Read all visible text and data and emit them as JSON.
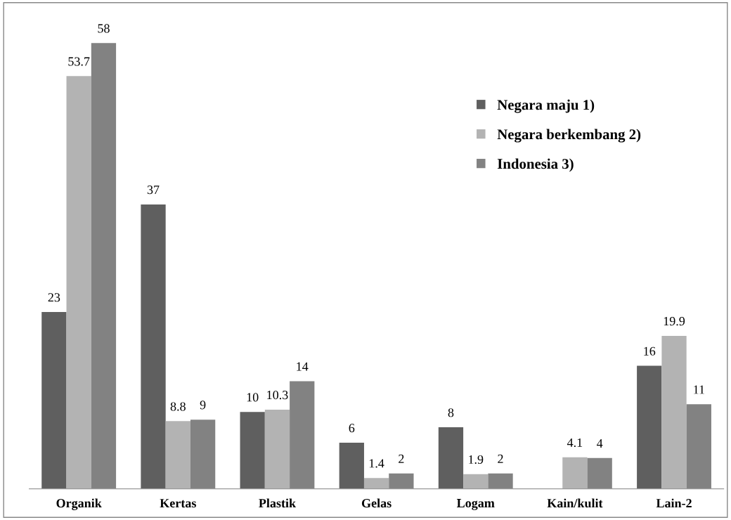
{
  "chart_data": {
    "type": "bar",
    "categories": [
      "Organik",
      "Kertas",
      "Plastik",
      "Gelas",
      "Logam",
      "Kain/kulit",
      "Lain-2"
    ],
    "series": [
      {
        "name": "Negara maju 1)",
        "color": "#5f5f5f",
        "values": [
          23,
          37,
          10,
          6,
          8,
          null,
          16
        ]
      },
      {
        "name": "Negara berkembang 2)",
        "color": "#b3b3b3",
        "values": [
          53.7,
          8.8,
          10.3,
          1.4,
          1.9,
          4.1,
          19.9
        ]
      },
      {
        "name": "Indonesia 3)",
        "color": "#828282",
        "values": [
          58,
          9,
          14,
          2,
          2,
          4,
          11
        ]
      }
    ],
    "tick_labels": "x",
    "data_labels": true,
    "legend": "top right",
    "grid": false
  }
}
